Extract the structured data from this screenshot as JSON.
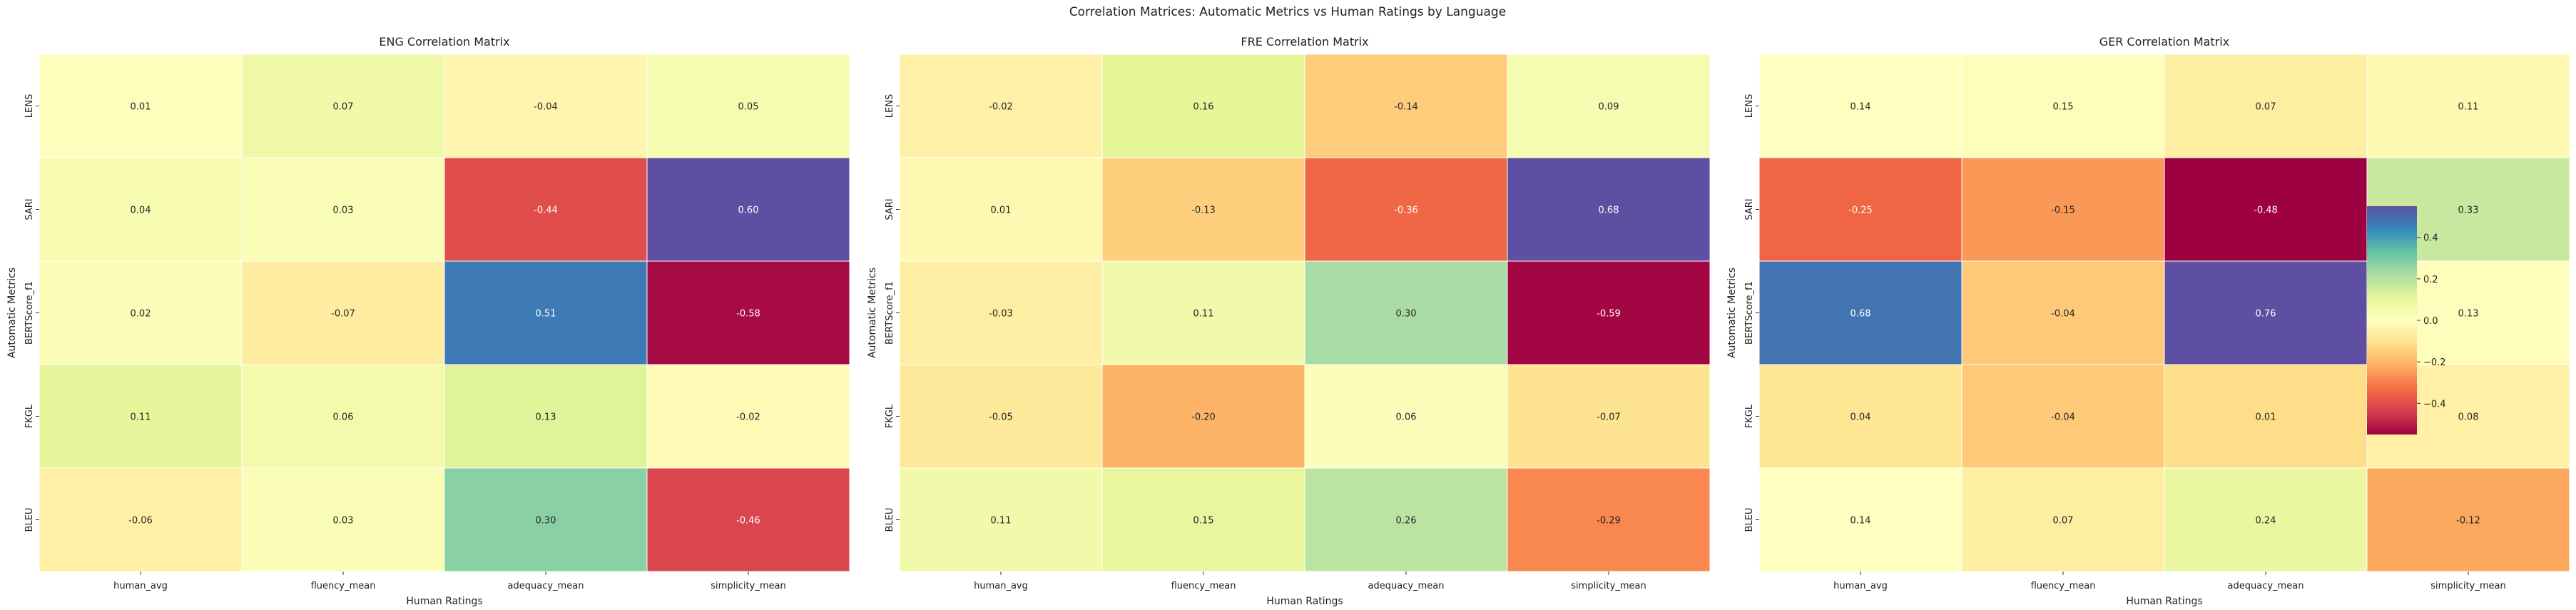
{
  "figure": {
    "suptitle": "Correlation Matrices: Automatic Metrics vs Human Ratings by Language"
  },
  "chart_data": [
    {
      "type": "heatmap",
      "title": "ENG Correlation Matrix",
      "xlabel": "Human Ratings",
      "ylabel": "Automatic Metrics",
      "x_categories": [
        "human_avg",
        "fluency_mean",
        "adequacy_mean",
        "simplicity_mean"
      ],
      "y_categories": [
        "LENS",
        "SARI",
        "BERTScore_f1",
        "FKGL",
        "BLEU"
      ],
      "values": [
        [
          0.01,
          0.07,
          -0.04,
          0.05
        ],
        [
          0.04,
          0.03,
          -0.44,
          0.6
        ],
        [
          0.02,
          -0.07,
          0.51,
          -0.58
        ],
        [
          0.11,
          0.06,
          0.13,
          -0.02
        ],
        [
          -0.06,
          0.03,
          0.3,
          -0.46
        ]
      ],
      "colormap": "Spectral",
      "vmin": -0.6,
      "vmax": 0.6
    },
    {
      "type": "heatmap",
      "title": "FRE Correlation Matrix",
      "xlabel": "Human Ratings",
      "ylabel": "Automatic Metrics",
      "x_categories": [
        "human_avg",
        "fluency_mean",
        "adequacy_mean",
        "simplicity_mean"
      ],
      "y_categories": [
        "LENS",
        "SARI",
        "BERTScore_f1",
        "FKGL",
        "BLEU"
      ],
      "values": [
        [
          -0.02,
          0.16,
          -0.14,
          0.09
        ],
        [
          0.01,
          -0.13,
          -0.36,
          0.68
        ],
        [
          -0.03,
          0.11,
          0.3,
          -0.59
        ],
        [
          -0.05,
          -0.2,
          0.06,
          -0.07
        ],
        [
          0.11,
          0.15,
          0.26,
          -0.29
        ]
      ],
      "colormap": "Spectral",
      "vmin": -0.6,
      "vmax": 0.68
    },
    {
      "type": "heatmap",
      "title": "GER Correlation Matrix",
      "xlabel": "Human Ratings",
      "ylabel": "Automatic Metrics",
      "x_categories": [
        "human_avg",
        "fluency_mean",
        "adequacy_mean",
        "simplicity_mean"
      ],
      "y_categories": [
        "LENS",
        "SARI",
        "BERTScore_f1",
        "FKGL",
        "BLEU"
      ],
      "values": [
        [
          0.14,
          0.15,
          0.07,
          0.11
        ],
        [
          -0.25,
          -0.15,
          -0.48,
          0.33
        ],
        [
          0.68,
          -0.04,
          0.76,
          0.13
        ],
        [
          0.04,
          -0.04,
          0.01,
          0.08
        ],
        [
          0.14,
          0.07,
          0.24,
          -0.12
        ]
      ],
      "colormap": "Spectral",
      "vmin": -0.48,
      "vmax": 0.76
    }
  ],
  "colorbar": {
    "ticks": [
      0.4,
      0.2,
      0.0,
      -0.2,
      -0.4
    ],
    "tick_labels": [
      "0.4",
      "0.2",
      "0.0",
      "−0.2",
      "−0.4"
    ],
    "vmin": -0.55,
    "vmax": 0.55,
    "colormap": "Spectral"
  }
}
